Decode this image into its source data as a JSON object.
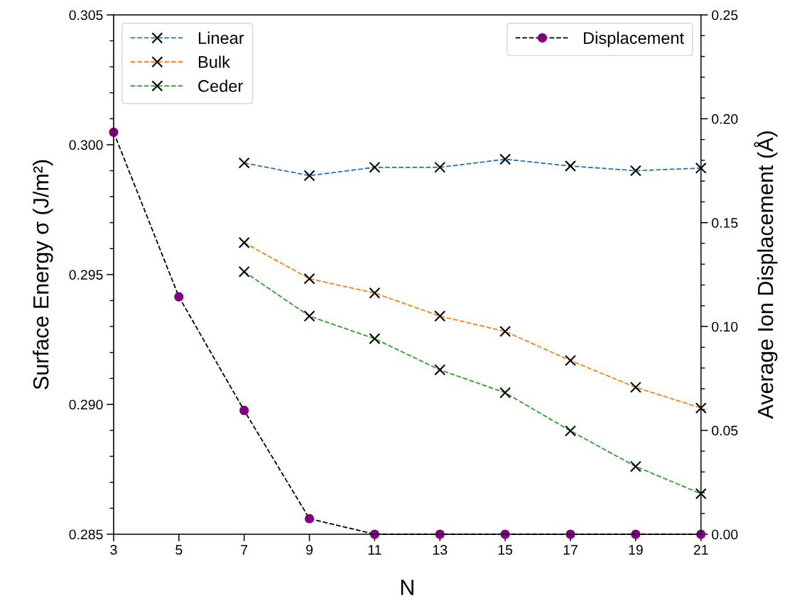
{
  "chart_data": {
    "type": "line",
    "xlabel": "N",
    "ylabel": "Surface Energy σ (J/m²)",
    "y2label": "Average Ion Displacement (Å)",
    "xlim": [
      3,
      21
    ],
    "xticks": [
      3,
      5,
      7,
      9,
      11,
      13,
      15,
      17,
      19,
      21
    ],
    "ylim": [
      0.285,
      0.305
    ],
    "yticks": [
      {
        "value": 0.285,
        "label": "0.285"
      },
      {
        "value": 0.29,
        "label": "0.290"
      },
      {
        "value": 0.295,
        "label": "0.295"
      },
      {
        "value": 0.3,
        "label": "0.300"
      },
      {
        "value": 0.305,
        "label": "0.305"
      }
    ],
    "y2lim": [
      0,
      0.25
    ],
    "y2ticks": [
      {
        "value": 0,
        "label": "0.00"
      },
      {
        "value": 0.05,
        "label": "0.05"
      },
      {
        "value": 0.1,
        "label": "0.10"
      },
      {
        "value": 0.15,
        "label": "0.15"
      },
      {
        "value": 0.2,
        "label": "0.20"
      },
      {
        "value": 0.25,
        "label": "0.25"
      }
    ],
    "grid": false,
    "legend": "top left",
    "line_style": "dashed",
    "series": [
      {
        "name": "Linear",
        "color": "#1f77b4",
        "marker": "cross",
        "x": [
          7,
          9,
          11,
          13,
          15,
          17,
          19,
          21
        ],
        "values": [
          0.2993,
          0.29881,
          0.29913,
          0.29913,
          0.29944,
          0.29918,
          0.299,
          0.2991
        ],
        "colors": [
          "#000000",
          "#000000",
          "#000000",
          "#000000",
          "#000000",
          "#000000",
          "#000000",
          "#000000"
        ]
      },
      {
        "name": "Bulk",
        "color": "#ff7f0e",
        "marker": "cross",
        "x": [
          7,
          9,
          11,
          13,
          15,
          17,
          19,
          21
        ],
        "values": [
          0.29623,
          0.29484,
          0.29429,
          0.2934,
          0.29281,
          0.29169,
          0.29066,
          0.28986
        ],
        "colors": [
          "#000000",
          "#000000",
          "#000000",
          "#000000",
          "#000000",
          "#000000",
          "#000000",
          "#000000"
        ]
      },
      {
        "name": "Ceder",
        "color": "#2ca02c",
        "marker": "cross",
        "x": [
          7,
          9,
          11,
          13,
          15,
          17,
          19,
          21
        ],
        "values": [
          0.29511,
          0.2934,
          0.29253,
          0.29133,
          0.29045,
          0.28898,
          0.28761,
          0.28656
        ],
        "colors": [
          "#000000",
          "#000000",
          "#000000",
          "#000000",
          "#000000",
          "#000000",
          "#000000",
          "#000000"
        ]
      },
      {
        "name": "Displacement",
        "color": "#000000",
        "marker": "circle",
        "axis": "y2",
        "x": [
          3,
          5,
          7,
          9,
          11,
          13,
          15,
          17,
          19,
          21
        ],
        "values": [
          0.1935,
          0.1143,
          0.0596,
          0.0075,
          0,
          0,
          0,
          0,
          0,
          0
        ],
        "colors": [
          "#800080",
          "#800080",
          "#800080",
          "#800080",
          "#800080",
          "#800080",
          "#800080",
          "#800080",
          "#800080",
          "#800080"
        ]
      }
    ]
  }
}
